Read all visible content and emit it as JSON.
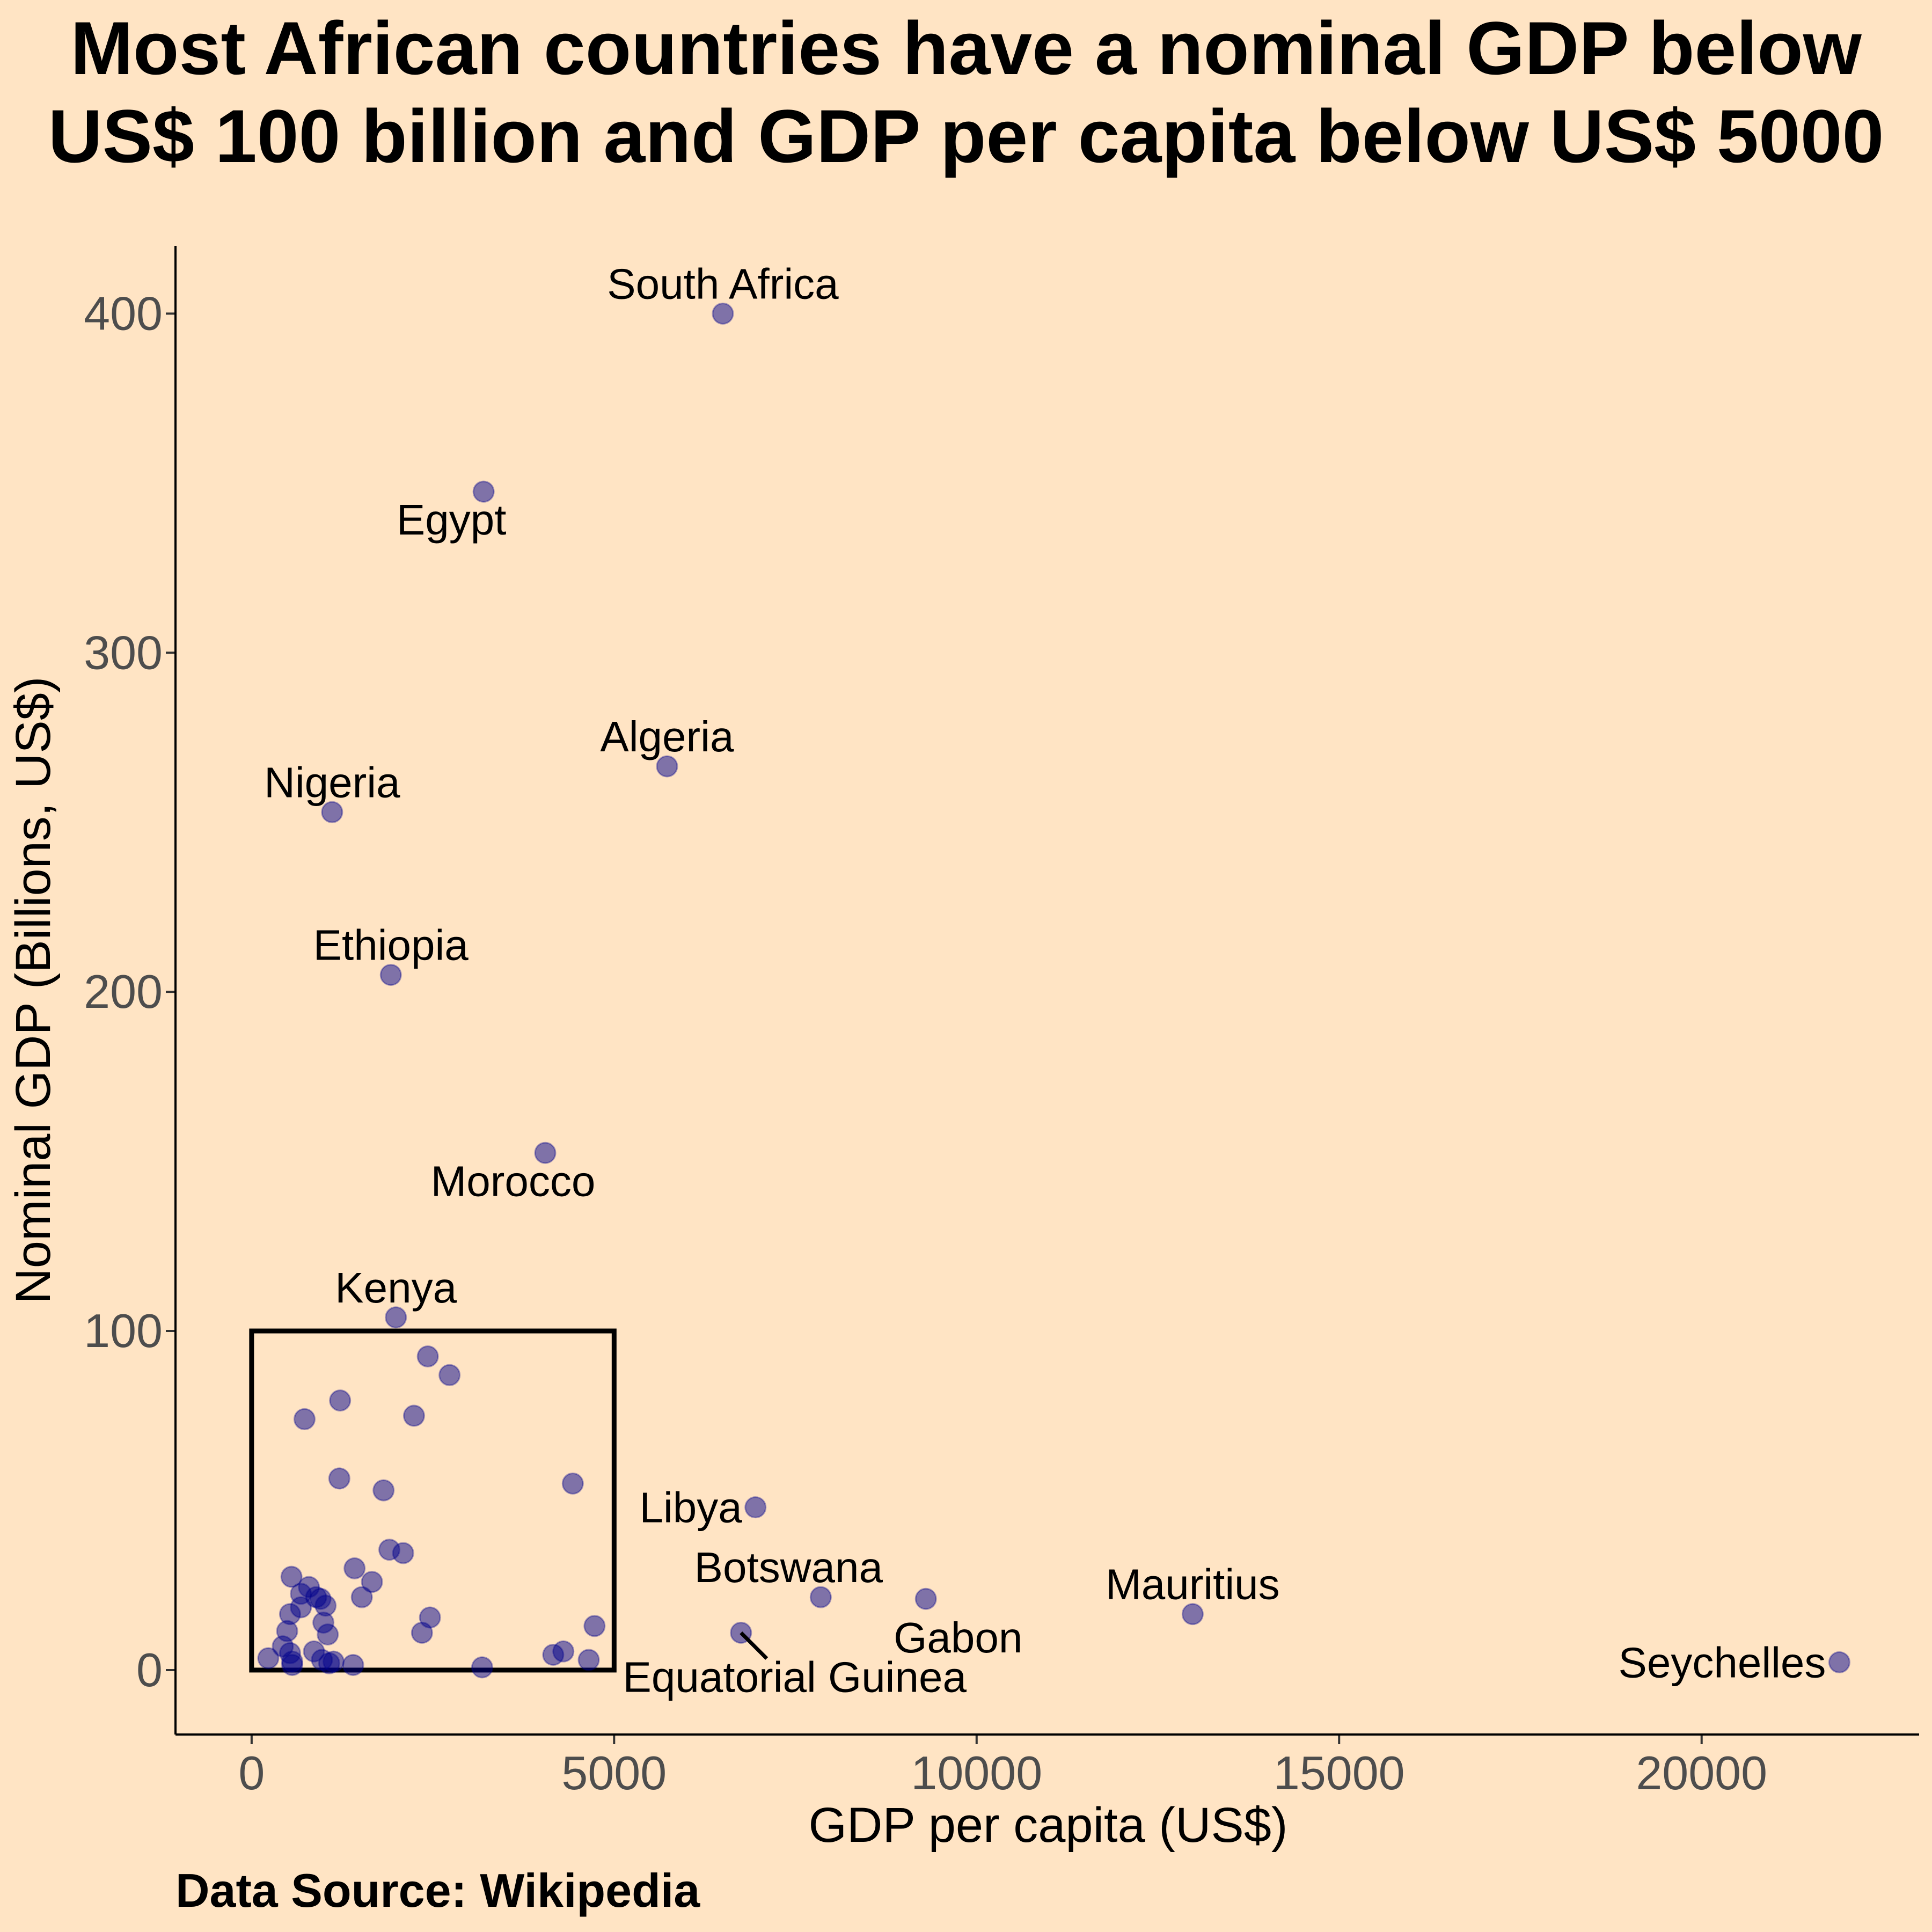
{
  "chart_data": {
    "type": "scatter",
    "title_lines": [
      "Most African countries have a nominal GDP below",
      "US$ 100 billion and GDP per capita below US$ 5000"
    ],
    "xlabel": "GDP per capita (US$)",
    "ylabel": "Nominal GDP (Billions, US$)",
    "caption": "Data Source: Wikipedia",
    "xlim": [
      -1050,
      23000
    ],
    "ylim": [
      -19,
      420
    ],
    "xticks": [
      0,
      5000,
      10000,
      15000,
      20000
    ],
    "yticks": [
      0,
      100,
      200,
      300,
      400
    ],
    "grid": false,
    "point_color": "#00008B",
    "point_opacity": 0.5,
    "background": "#FFE4C4",
    "highlight_box": {
      "x": [
        0,
        5000
      ],
      "y": [
        0,
        100
      ]
    },
    "labeled_points": [
      {
        "name": "South Africa",
        "x": 6500,
        "y": 400,
        "label_pos": "above"
      },
      {
        "name": "Egypt",
        "x": 3200,
        "y": 347.5,
        "label_pos": "below-left"
      },
      {
        "name": "Algeria",
        "x": 5730,
        "y": 266.5,
        "label_pos": "above"
      },
      {
        "name": "Nigeria",
        "x": 1110,
        "y": 253,
        "label_pos": "above"
      },
      {
        "name": "Ethiopia",
        "x": 1920,
        "y": 205,
        "label_pos": "above"
      },
      {
        "name": "Morocco",
        "x": 4050,
        "y": 152.5,
        "label_pos": "below-left"
      },
      {
        "name": "Kenya",
        "x": 1990,
        "y": 104,
        "label_pos": "above"
      },
      {
        "name": "Libya",
        "x": 6950,
        "y": 48,
        "label_pos": "left"
      },
      {
        "name": "Botswana",
        "x": 7850,
        "y": 21.5,
        "label_pos": "above-left"
      },
      {
        "name": "Gabon",
        "x": 9300,
        "y": 21,
        "label_pos": "below"
      },
      {
        "name": "Mauritius",
        "x": 12980,
        "y": 16.5,
        "label_pos": "above"
      },
      {
        "name": "Equatorial Guinea",
        "x": 6750,
        "y": 11,
        "label_pos": "below-right"
      },
      {
        "name": "Seychelles",
        "x": 21900,
        "y": 2.3,
        "label_pos": "left"
      }
    ],
    "unlabeled_points": [
      {
        "x": 2430,
        "y": 92.5
      },
      {
        "x": 2730,
        "y": 87
      },
      {
        "x": 1220,
        "y": 79.5
      },
      {
        "x": 2240,
        "y": 75
      },
      {
        "x": 730,
        "y": 74
      },
      {
        "x": 1210,
        "y": 56.5
      },
      {
        "x": 4430,
        "y": 55
      },
      {
        "x": 1820,
        "y": 53
      },
      {
        "x": 1900,
        "y": 35.5
      },
      {
        "x": 2090,
        "y": 34.5
      },
      {
        "x": 1420,
        "y": 30
      },
      {
        "x": 550,
        "y": 27.5
      },
      {
        "x": 1660,
        "y": 26
      },
      {
        "x": 790,
        "y": 24.5
      },
      {
        "x": 680,
        "y": 22.5
      },
      {
        "x": 890,
        "y": 21.5
      },
      {
        "x": 950,
        "y": 21
      },
      {
        "x": 1520,
        "y": 21.5
      },
      {
        "x": 1020,
        "y": 19
      },
      {
        "x": 680,
        "y": 18.5
      },
      {
        "x": 530,
        "y": 16.5
      },
      {
        "x": 2460,
        "y": 15.5
      },
      {
        "x": 990,
        "y": 14
      },
      {
        "x": 4730,
        "y": 13
      },
      {
        "x": 490,
        "y": 11.5
      },
      {
        "x": 2350,
        "y": 11
      },
      {
        "x": 1050,
        "y": 10.5
      },
      {
        "x": 430,
        "y": 7
      },
      {
        "x": 860,
        "y": 5.5
      },
      {
        "x": 4300,
        "y": 5.5
      },
      {
        "x": 530,
        "y": 5
      },
      {
        "x": 4160,
        "y": 4.5
      },
      {
        "x": 230,
        "y": 3.5
      },
      {
        "x": 4650,
        "y": 3
      },
      {
        "x": 970,
        "y": 3
      },
      {
        "x": 560,
        "y": 2.5
      },
      {
        "x": 1130,
        "y": 2.5
      },
      {
        "x": 1070,
        "y": 2
      },
      {
        "x": 1400,
        "y": 1.5
      },
      {
        "x": 560,
        "y": 1.5
      },
      {
        "x": 3180,
        "y": 0.8
      }
    ]
  }
}
